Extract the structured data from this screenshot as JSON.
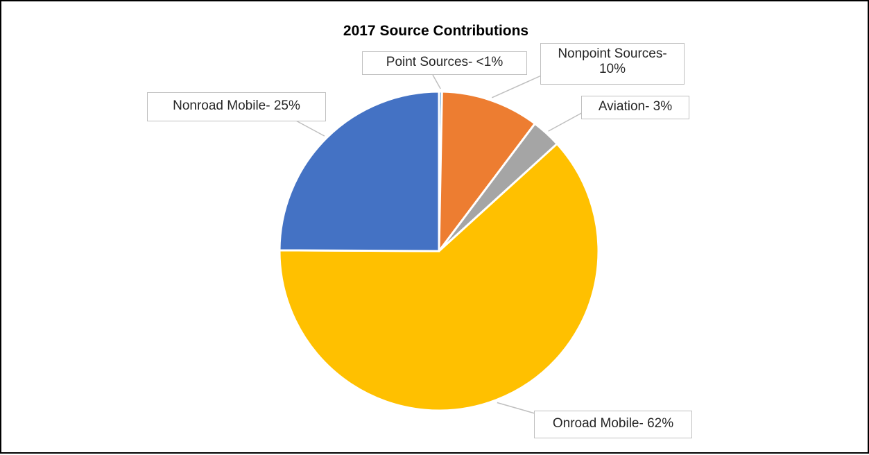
{
  "chart_data": {
    "type": "pie",
    "title": "2017 Source Contributions",
    "slices": [
      {
        "name": "Point Sources",
        "value": 0.3,
        "label": "Point Sources-  <1%",
        "color": "#5B9BD5"
      },
      {
        "name": "Nonpoint Sources",
        "value": 10,
        "label": "Nonpoint Sources-\n10%",
        "color": "#ED7D31"
      },
      {
        "name": "Aviation",
        "value": 3,
        "label": "Aviation- 3%",
        "color": "#A5A5A5"
      },
      {
        "name": "Onroad Mobile",
        "value": 62,
        "label": "Onroad Mobile- 62%",
        "color": "#FFC000"
      },
      {
        "name": "Nonroad Mobile",
        "value": 25,
        "label": "Nonroad Mobile- 25%",
        "color": "#4472C4"
      }
    ],
    "legend": "none",
    "data_labels": "outside-with-leader-lines"
  }
}
